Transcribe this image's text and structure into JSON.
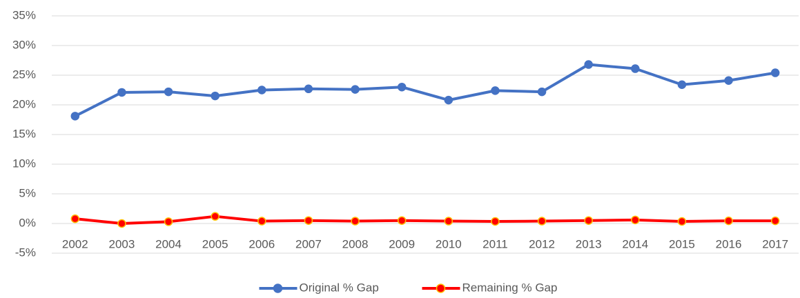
{
  "chart_data": {
    "type": "line",
    "categories": [
      "2002",
      "2003",
      "2004",
      "2005",
      "2006",
      "2007",
      "2008",
      "2009",
      "2010",
      "2011",
      "2012",
      "2013",
      "2014",
      "2015",
      "2016",
      "2017"
    ],
    "series": [
      {
        "name": "Original % Gap",
        "color": "#4472c4",
        "marker_edge": "#4472c4",
        "values": [
          18.1,
          22.1,
          22.2,
          21.5,
          22.5,
          22.7,
          22.6,
          23.0,
          20.8,
          22.4,
          22.2,
          26.8,
          26.1,
          23.4,
          24.1,
          25.4
        ]
      },
      {
        "name": "Remaining % Gap",
        "color": "#ff0000",
        "marker_edge": "#ffc000",
        "values": [
          0.8,
          0.0,
          0.3,
          1.2,
          0.4,
          0.5,
          0.4,
          0.5,
          0.4,
          0.35,
          0.4,
          0.5,
          0.6,
          0.35,
          0.45,
          0.45
        ]
      }
    ],
    "ylim": [
      -5,
      35
    ],
    "yticks": [
      {
        "value": -5,
        "label": "-5%"
      },
      {
        "value": 0,
        "label": "0%"
      },
      {
        "value": 5,
        "label": "5%"
      },
      {
        "value": 10,
        "label": "10%"
      },
      {
        "value": 15,
        "label": "15%"
      },
      {
        "value": 20,
        "label": "20%"
      },
      {
        "value": 25,
        "label": "25%"
      },
      {
        "value": 30,
        "label": "30%"
      },
      {
        "value": 35,
        "label": "35%"
      }
    ],
    "grid": true,
    "legend": "bottom"
  }
}
